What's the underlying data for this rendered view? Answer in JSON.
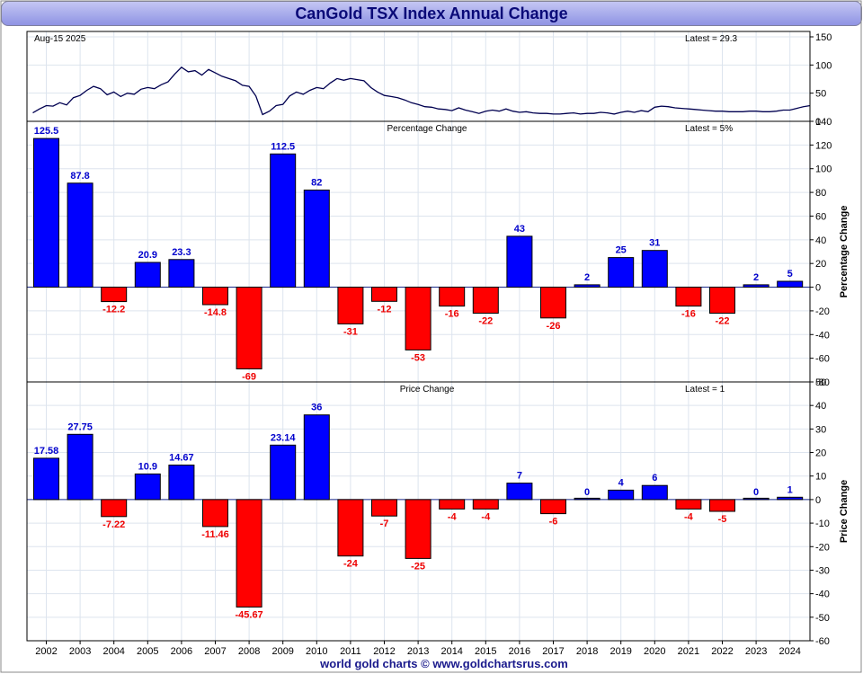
{
  "title": "CanGold TSX Index Annual Change",
  "footer": "world gold charts © www.goldchartsrus.com",
  "colors": {
    "up": "#0000ff",
    "down": "#ff0000",
    "up_label": "#0000cc",
    "down_label": "#ee0000",
    "line": "#000050",
    "grid": "#dde4ee"
  },
  "chart_data": [
    {
      "type": "line",
      "date_label": "Aug-15  2025",
      "latest_label": "Latest = 29.3",
      "xlim": [
        2001.5,
        2025.0
      ],
      "ylim": [
        0,
        150
      ],
      "yticks": [
        0,
        50,
        100,
        150
      ],
      "grid": true,
      "x": [
        2001.6,
        2001.8,
        2002.0,
        2002.2,
        2002.4,
        2002.6,
        2002.8,
        2003.0,
        2003.2,
        2003.4,
        2003.6,
        2003.8,
        2004.0,
        2004.2,
        2004.4,
        2004.6,
        2004.8,
        2005.0,
        2005.2,
        2005.4,
        2005.6,
        2005.8,
        2006.0,
        2006.2,
        2006.4,
        2006.6,
        2006.8,
        2007.0,
        2007.2,
        2007.4,
        2007.6,
        2007.8,
        2008.0,
        2008.2,
        2008.4,
        2008.6,
        2008.8,
        2009.0,
        2009.2,
        2009.4,
        2009.6,
        2009.8,
        2010.0,
        2010.2,
        2010.4,
        2010.6,
        2010.8,
        2011.0,
        2011.2,
        2011.4,
        2011.6,
        2011.8,
        2012.0,
        2012.2,
        2012.4,
        2012.6,
        2012.8,
        2013.0,
        2013.2,
        2013.4,
        2013.6,
        2013.8,
        2014.0,
        2014.2,
        2014.4,
        2014.6,
        2014.8,
        2015.0,
        2015.2,
        2015.4,
        2015.6,
        2015.8,
        2016.0,
        2016.2,
        2016.4,
        2016.6,
        2016.8,
        2017.0,
        2017.2,
        2017.4,
        2017.6,
        2017.8,
        2018.0,
        2018.2,
        2018.4,
        2018.6,
        2018.8,
        2019.0,
        2019.2,
        2019.4,
        2019.6,
        2019.8,
        2020.0,
        2020.2,
        2020.4,
        2020.6,
        2020.8,
        2021.0,
        2021.2,
        2021.4,
        2021.6,
        2021.8,
        2022.0,
        2022.2,
        2022.4,
        2022.6,
        2022.8,
        2023.0,
        2023.2,
        2023.4,
        2023.6,
        2023.8,
        2024.0,
        2024.2,
        2024.4,
        2024.6
      ],
      "y": [
        15,
        22,
        28,
        27,
        33,
        29,
        42,
        46,
        55,
        62,
        58,
        47,
        52,
        44,
        50,
        48,
        57,
        60,
        58,
        65,
        70,
        84,
        96,
        88,
        90,
        82,
        92,
        86,
        80,
        76,
        72,
        64,
        62,
        45,
        12,
        18,
        28,
        30,
        45,
        52,
        48,
        55,
        60,
        58,
        68,
        76,
        73,
        76,
        74,
        72,
        60,
        52,
        46,
        44,
        42,
        38,
        33,
        30,
        26,
        25,
        22,
        21,
        19,
        24,
        20,
        17,
        14,
        18,
        20,
        18,
        22,
        18,
        16,
        17,
        15,
        14,
        14,
        13,
        13,
        14,
        15,
        13,
        14,
        14,
        16,
        15,
        13,
        16,
        18,
        16,
        19,
        17,
        25,
        27,
        26,
        24,
        23,
        22,
        21,
        20,
        19,
        18,
        18,
        17,
        17,
        17,
        18,
        18,
        17,
        17,
        18,
        20,
        20,
        23,
        26,
        28
      ]
    },
    {
      "type": "bar",
      "panel_label": "Percentage Change",
      "latest_label": "Latest = 5%",
      "ylabel": "Percentage Change",
      "ylim": [
        -80,
        140
      ],
      "yticks": [
        -80,
        -60,
        -40,
        -20,
        0,
        20,
        40,
        60,
        80,
        100,
        120,
        140
      ],
      "grid": true,
      "categories": [
        "2002",
        "2003",
        "2004",
        "2005",
        "2006",
        "2007",
        "2008",
        "2009",
        "2010",
        "2011",
        "2012",
        "2013",
        "2014",
        "2015",
        "2016",
        "2017",
        "2018",
        "2019",
        "2020",
        "2021",
        "2022",
        "2023",
        "2024"
      ],
      "values": [
        125.5,
        87.8,
        -12.2,
        20.9,
        23.3,
        -14.8,
        -69,
        112.5,
        82,
        -31,
        -12,
        -53,
        -16,
        -22,
        43,
        -26,
        2,
        25,
        31,
        -16,
        -22,
        2,
        5
      ],
      "labels": [
        "125.5",
        "87.8",
        "-12.2",
        "20.9",
        "23.3",
        "-14.8",
        "-69",
        "112.5",
        "82",
        "-31",
        "-12",
        "-53",
        "-16",
        "-22",
        "43",
        "-26",
        "2",
        "25",
        "31",
        "-16",
        "-22",
        "2",
        "5"
      ]
    },
    {
      "type": "bar",
      "panel_label": "Price Change",
      "latest_label": "Latest = 1",
      "ylabel": "Price Change",
      "ylim": [
        -60,
        50
      ],
      "yticks": [
        -60,
        -50,
        -40,
        -30,
        -20,
        -10,
        0,
        10,
        20,
        30,
        40,
        50
      ],
      "grid": true,
      "categories": [
        "2002",
        "2003",
        "2004",
        "2005",
        "2006",
        "2007",
        "2008",
        "2009",
        "2010",
        "2011",
        "2012",
        "2013",
        "2014",
        "2015",
        "2016",
        "2017",
        "2018",
        "2019",
        "2020",
        "2021",
        "2022",
        "2023",
        "2024"
      ],
      "values": [
        17.58,
        27.75,
        -7.22,
        10.9,
        14.67,
        -11.46,
        -45.67,
        23.14,
        36,
        -24,
        -7,
        -25,
        -4,
        -4,
        7,
        -6,
        0,
        4,
        6,
        -4,
        -5,
        0,
        1
      ],
      "labels": [
        "17.58",
        "27.75",
        "-7.22",
        "10.9",
        "14.67",
        "-11.46",
        "-45.67",
        "23.14",
        "36",
        "-24",
        "-7",
        "-25",
        "-4",
        "-4",
        "7",
        "-6",
        "0",
        "4",
        "6",
        "-4",
        "-5",
        "0",
        "1"
      ]
    }
  ]
}
